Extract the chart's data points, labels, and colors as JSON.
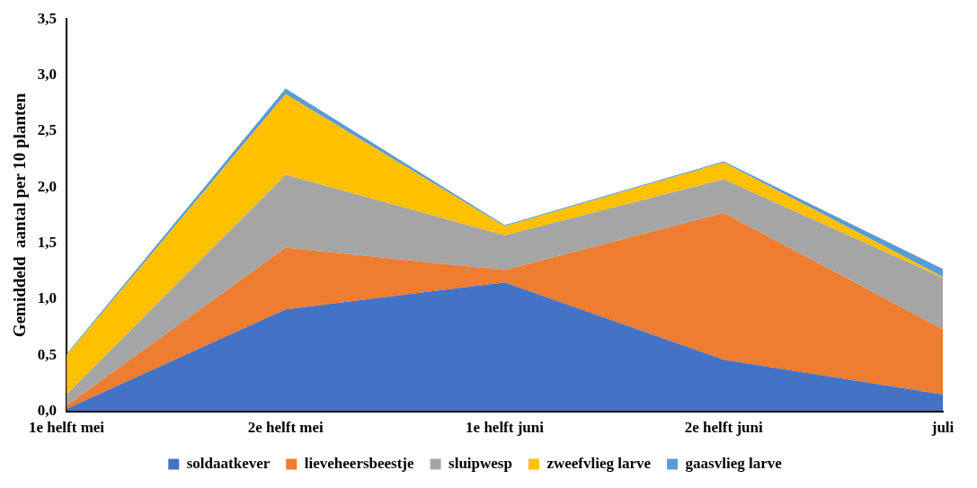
{
  "chart_data": {
    "type": "area",
    "stacked": true,
    "ylabel": "Gemiddeld  aantal per 10 planten",
    "categories": [
      "1e helft mei",
      "2e helft mei",
      "1e helft juni",
      "2e helft juni",
      "juli"
    ],
    "series": [
      {
        "name": "soldaatkever",
        "color": "#4472c4",
        "values": [
          0.02,
          0.91,
          1.15,
          0.46,
          0.15
        ]
      },
      {
        "name": "lieveheersbeestje",
        "color": "#ed7d31",
        "values": [
          0.03,
          0.55,
          0.11,
          1.31,
          0.58
        ]
      },
      {
        "name": "sluipwesp",
        "color": "#a5a5a5",
        "values": [
          0.1,
          0.65,
          0.31,
          0.3,
          0.46
        ]
      },
      {
        "name": "zweefvlieg larve",
        "color": "#ffc000",
        "values": [
          0.35,
          0.72,
          0.08,
          0.15,
          0.01
        ]
      },
      {
        "name": "gaasvlieg larve",
        "color": "#5b9bd5",
        "values": [
          0.01,
          0.05,
          0.01,
          0.01,
          0.07
        ]
      }
    ],
    "ylim": [
      0,
      3.5
    ],
    "yticks": [
      {
        "value": 0,
        "label": "0,0"
      },
      {
        "value": 0.5,
        "label": "0,5"
      },
      {
        "value": 1,
        "label": "1,0"
      },
      {
        "value": 1.5,
        "label": "1,5"
      },
      {
        "value": 2,
        "label": "2,0"
      },
      {
        "value": 2.5,
        "label": "2,5"
      },
      {
        "value": 3,
        "label": "3,0"
      },
      {
        "value": 3.5,
        "label": "3,5"
      }
    ],
    "grid": false,
    "legend": "bottom"
  }
}
